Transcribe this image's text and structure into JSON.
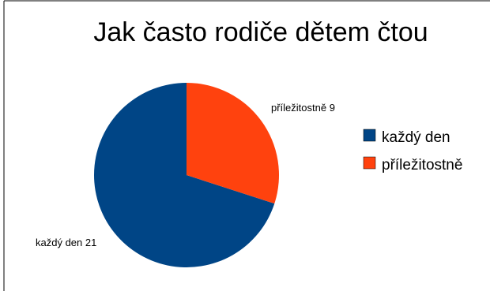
{
  "chart_data": {
    "type": "pie",
    "title": "Jak často rodiče dětem čtou",
    "categories": [
      "každý den",
      "příležitostně"
    ],
    "values": [
      21,
      9
    ],
    "data_labels": [
      "každý den 21",
      "příležitostně 9"
    ],
    "colors": [
      "#004586",
      "#ff420e"
    ],
    "legend": {
      "position": "right",
      "entries": [
        "každý den",
        "příležitostně"
      ]
    }
  }
}
